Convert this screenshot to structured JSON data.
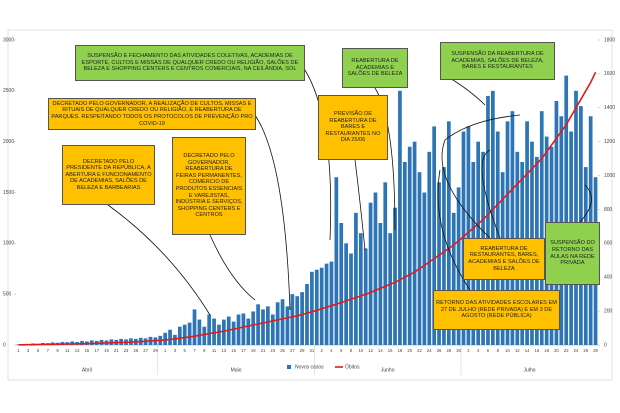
{
  "chart_data": {
    "type": "bar",
    "categories": [
      "1",
      null,
      "3",
      null,
      "5",
      null,
      "7",
      null,
      "9",
      null,
      "11",
      null,
      "13",
      null,
      "15",
      null,
      "17",
      null,
      "19",
      null,
      "21",
      null,
      "23",
      null,
      "25",
      null,
      "27",
      null,
      "29",
      null,
      "1",
      null,
      "3",
      null,
      "5",
      null,
      "7",
      null,
      "9",
      null,
      "11",
      null,
      "13",
      null,
      "15",
      null,
      "17",
      null,
      "19",
      null,
      "21",
      null,
      "23",
      null,
      "25",
      null,
      "27",
      null,
      "29",
      null,
      "31",
      null,
      "2",
      null,
      "4",
      null,
      "6",
      null,
      "8",
      null,
      "10",
      null,
      "12",
      null,
      "14",
      null,
      "16",
      null,
      "18",
      null,
      "20",
      null,
      "22",
      null,
      "24",
      null,
      "26",
      null,
      "28",
      null,
      "30",
      null,
      "2",
      null,
      "4",
      null,
      "6",
      null,
      "8",
      null,
      "10",
      null,
      "12",
      null,
      "14",
      null,
      "16",
      null,
      "18",
      null,
      "20",
      null,
      "22",
      null,
      "24",
      null,
      "26",
      null,
      "28"
    ],
    "months": [
      "Abril",
      "Maio",
      "Junho",
      "Julho"
    ],
    "series": [
      {
        "name": "Novos casos",
        "color": "#2e75b6",
        "axis": "y",
        "values": [
          5,
          10,
          8,
          15,
          12,
          20,
          18,
          25,
          22,
          30,
          28,
          35,
          30,
          40,
          35,
          45,
          40,
          50,
          45,
          55,
          50,
          60,
          55,
          65,
          60,
          70,
          65,
          80,
          75,
          90,
          120,
          150,
          100,
          180,
          200,
          220,
          350,
          250,
          180,
          300,
          260,
          200,
          250,
          280,
          230,
          300,
          310,
          260,
          330,
          400,
          350,
          380,
          300,
          420,
          450,
          380,
          500,
          480,
          520,
          600,
          720,
          740,
          760,
          800,
          820,
          1650,
          1200,
          1000,
          900,
          1300,
          1100,
          950,
          1400,
          1500,
          1200,
          1600,
          1100,
          1350,
          2500,
          1800,
          1950,
          2000,
          1700,
          1500,
          1900,
          2150,
          1600,
          1750,
          2200,
          1300,
          1550,
          2100,
          2150,
          1800,
          2000,
          1900,
          2450,
          2500,
          2100,
          1700,
          2200,
          2300,
          1900,
          1800,
          2200,
          2000,
          1850,
          2300,
          2050,
          1950,
          2400,
          2250,
          2650,
          2100,
          2500,
          2350,
          1750,
          2250,
          1650
        ]
      },
      {
        "name": "Óbitos",
        "color": "#e31a1c",
        "axis": "y2",
        "values": [
          1,
          1,
          2,
          2,
          3,
          3,
          4,
          4,
          5,
          5,
          6,
          6,
          7,
          7,
          8,
          9,
          10,
          11,
          12,
          13,
          14,
          15,
          16,
          17,
          18,
          20,
          22,
          24,
          26,
          28,
          30,
          33,
          36,
          40,
          44,
          48,
          52,
          57,
          62,
          67,
          72,
          77,
          82,
          88,
          94,
          100,
          106,
          112,
          118,
          124,
          130,
          136,
          142,
          148,
          154,
          160,
          166,
          172,
          180,
          188,
          196,
          205,
          214,
          223,
          232,
          241,
          250,
          260,
          270,
          280,
          290,
          300,
          310,
          322,
          334,
          346,
          358,
          370,
          385,
          400,
          415,
          430,
          450,
          470,
          490,
          510,
          530,
          550,
          570,
          590,
          615,
          640,
          665,
          690,
          715,
          740,
          770,
          800,
          830,
          860,
          890,
          920,
          950,
          980,
          1010,
          1040,
          1070,
          1100,
          1140,
          1180,
          1220,
          1260,
          1300,
          1350,
          1400,
          1450,
          1500,
          1550,
          1610
        ]
      }
    ],
    "ylim": [
      0,
      3000
    ],
    "yticks": [
      0,
      500,
      1000,
      1500,
      2000,
      2500,
      3000
    ],
    "y2lim": [
      0,
      1800
    ],
    "y2ticks": [
      0,
      200,
      400,
      600,
      800,
      1000,
      1200,
      1400,
      1600,
      1800
    ],
    "annotations": [
      "Suspensão e fechamento das atividades coletivas, academias de esporte, cultos e missas de qualquer credo ou religião, salões de beleza e shopping centers e centros comerciais, na Ceilândia, Sol",
      "Decretado pelo governador, a realização de cultos, missas e rituais de qualquer credo ou religião, e reabertura de parques. Respeitando todos os protocolos de prevenção pro COVID-19",
      "Decretado pelo Presidente da República, a abertura e funcionamento de academias, salões de beleza e barbearias",
      "Decretado pelo governador, reabertura de feiras permanentes, comércio de produtos essenciais e varejistas, indústria e serviços, shopping centers e centros",
      "Reabertura de academias e salões de beleza",
      "Previsão de reabertura de bares e restaurantes no dia 25/06",
      "Suspensão da reabertura de academias, salões de beleza, bares e restaurantes",
      "Reabertura de restaurantes, bares, academias e salões de beleza",
      "Retorno das atividades escolares em 27 de julho (rede privada) e em 3 de agosto (rede pública)",
      "Suspensão do retorno das aulas na rede privada"
    ]
  }
}
